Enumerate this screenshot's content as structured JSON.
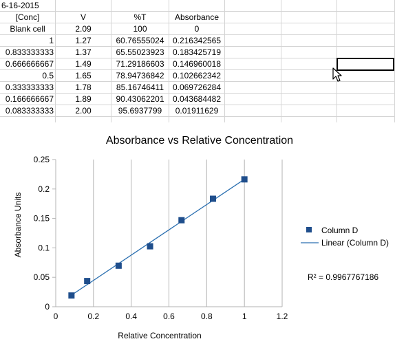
{
  "sheet": {
    "title_cell": "6-16-2015",
    "headers": [
      "[Conc]",
      "V",
      "%T",
      "Absorbance"
    ],
    "rows": [
      [
        "Blank cell",
        "2.09",
        "100",
        "0"
      ],
      [
        "1",
        "1.27",
        "60.76555024",
        "0.216342565"
      ],
      [
        "0.833333333",
        "1.37",
        "65.55023923",
        "0.183425719"
      ],
      [
        "0.666666667",
        "1.49",
        "71.29186603",
        "0.146960018"
      ],
      [
        "0.5",
        "1.65",
        "78.94736842",
        "0.102662342"
      ],
      [
        "0.333333333",
        "1.78",
        "85.16746411",
        "0.069726284"
      ],
      [
        "0.166666667",
        "1.89",
        "90.43062201",
        "0.043684482"
      ],
      [
        "0.083333333",
        "2.00",
        "95.6937799",
        "0.01911629"
      ]
    ]
  },
  "chart_data": {
    "type": "scatter",
    "title": "Absorbance vs Relative Concentration",
    "xlabel": "Relative Concentration",
    "ylabel": "Absorbance Units",
    "xlim": [
      0,
      1.2
    ],
    "ylim": [
      0,
      0.25
    ],
    "xticks": [
      0,
      0.2,
      0.4,
      0.6,
      0.8,
      1,
      1.2
    ],
    "xtick_labels": [
      "0",
      "0.2",
      "0.4",
      "0.6",
      "0.8",
      "1",
      "1.2"
    ],
    "yticks": [
      0,
      0.05,
      0.1,
      0.15,
      0.2,
      0.25
    ],
    "ytick_labels": [
      "0",
      "0.05",
      "0.1",
      "0.15",
      "0.2",
      "0.25"
    ],
    "grid": "vertical",
    "legend_position": "right",
    "series": [
      {
        "name": "Column D",
        "marker": "square",
        "color": "#1f4e8c",
        "x": [
          1,
          0.833333333,
          0.666666667,
          0.5,
          0.333333333,
          0.166666667,
          0.083333333
        ],
        "y": [
          0.216342565,
          0.183425719,
          0.146960018,
          0.102662342,
          0.069726284,
          0.043684482,
          0.01911629
        ]
      }
    ],
    "trendline": {
      "name": "Linear (Column D)",
      "color": "#2a6fb0",
      "r_squared_label": "R² = 0.9967767186"
    }
  }
}
